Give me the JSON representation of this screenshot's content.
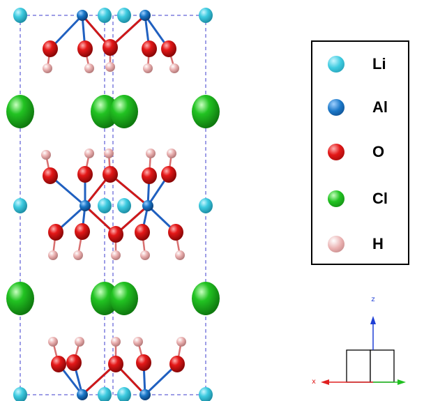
{
  "legend": {
    "items": [
      {
        "label": "Li",
        "color": "#3ecbe0"
      },
      {
        "label": "Al",
        "color": "#1b78c8"
      },
      {
        "label": "O",
        "color": "#e41818"
      },
      {
        "label": "Cl",
        "color": "#22c322"
      },
      {
        "label": "H",
        "color": "#eab0b0"
      }
    ]
  },
  "axes": {
    "z_label": "z",
    "x_label": "x"
  },
  "colors": {
    "cell_line": "#3b3bcc",
    "bond_al_o": "#2060c0",
    "z_arrow": "#1f3fd6",
    "x_arrow": "#e02020",
    "y_arrow": "#20c020"
  }
}
